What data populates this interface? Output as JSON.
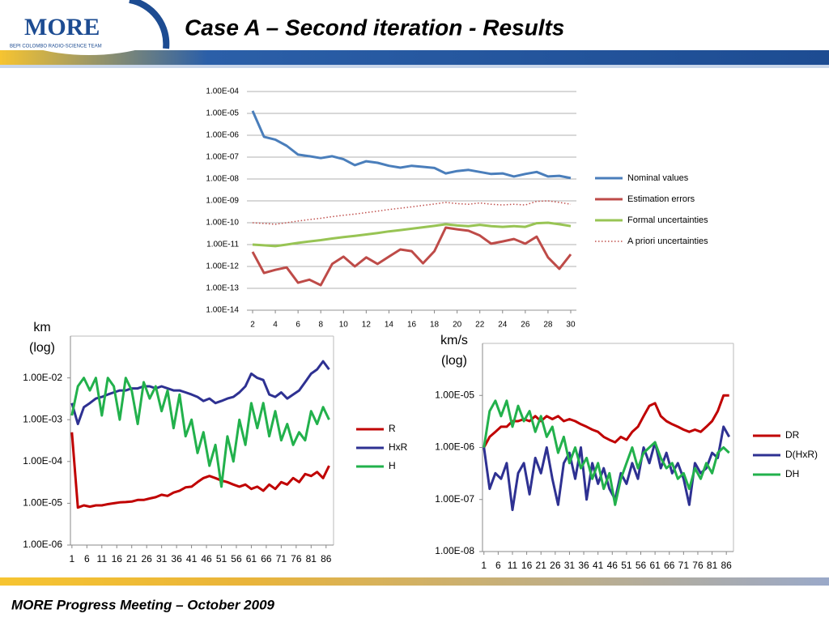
{
  "header": {
    "title": "Case A – Second iteration - Results",
    "logo": "MORE",
    "logo_subtitle": "BEPI COLOMBO RADIO-SCIENCE TEAM"
  },
  "footer": "MORE Progress Meeting – October 2009",
  "chart_data": [
    {
      "type": "line",
      "log_y": true,
      "grid": true,
      "legend": "right",
      "x": [
        2,
        3,
        4,
        5,
        6,
        7,
        8,
        9,
        10,
        11,
        12,
        13,
        14,
        15,
        16,
        17,
        18,
        19,
        20,
        21,
        22,
        23,
        24,
        25,
        26,
        27,
        28,
        29,
        30
      ],
      "xlim": [
        1.5,
        30.5
      ],
      "xticks": [
        2,
        4,
        6,
        8,
        10,
        12,
        14,
        16,
        18,
        20,
        22,
        24,
        26,
        28,
        30
      ],
      "ylim": [
        1e-14,
        0.0001
      ],
      "yticks": [
        {
          "value": 1e-14,
          "label": "1.00E-14"
        },
        {
          "value": 1e-13,
          "label": "1.00E-13"
        },
        {
          "value": 1e-12,
          "label": "1.00E-12"
        },
        {
          "value": 1e-11,
          "label": "1.00E-11"
        },
        {
          "value": 1e-10,
          "label": "1.00E-10"
        },
        {
          "value": 1e-09,
          "label": "1.00E-09"
        },
        {
          "value": 1e-08,
          "label": "1.00E-08"
        },
        {
          "value": 1e-07,
          "label": "1.00E-07"
        },
        {
          "value": 1e-06,
          "label": "1.00E-06"
        },
        {
          "value": 1e-05,
          "label": "1.00E-05"
        },
        {
          "value": 0.0001,
          "label": "1.00E-04"
        }
      ],
      "series": [
        {
          "name": "Nominal values",
          "color": "#4a7ebb",
          "values": [
            1.3e-05,
            8.5e-07,
            6.3e-07,
            3.3e-07,
            1.3e-07,
            1.1e-07,
            9e-08,
            1.1e-07,
            8e-08,
            4.3e-08,
            6.5e-08,
            5.5e-08,
            4e-08,
            3.3e-08,
            4e-08,
            3.6e-08,
            3.2e-08,
            1.8e-08,
            2.3e-08,
            2.6e-08,
            2.1e-08,
            1.7e-08,
            1.8e-08,
            1.3e-08,
            1.7e-08,
            2.1e-08,
            1.3e-08,
            1.4e-08,
            1.1e-08
          ]
        },
        {
          "name": "Estimation errors",
          "color": "#be4b48",
          "values": [
            4.7e-12,
            5e-13,
            7e-13,
            9e-13,
            1.8e-13,
            2.5e-13,
            1.4e-13,
            1.3e-12,
            2.8e-12,
            1e-12,
            2.6e-12,
            1.3e-12,
            2.8e-12,
            6e-12,
            5e-12,
            1.4e-12,
            5e-12,
            6e-11,
            5e-11,
            4.3e-11,
            2.6e-11,
            1.1e-11,
            1.4e-11,
            1.8e-11,
            1.1e-11,
            2.3e-11,
            2.6e-12,
            7.8e-13,
            3.6e-12
          ]
        },
        {
          "name": "Formal uncertainties",
          "color": "#98c454",
          "values": [
            1e-11,
            9.3e-12,
            8.5e-12,
            1e-11,
            1.2e-11,
            1.4e-11,
            1.6e-11,
            1.9e-11,
            2.2e-11,
            2.5e-11,
            2.9e-11,
            3.4e-11,
            4e-11,
            4.6e-11,
            5.3e-11,
            6.2e-11,
            7.2e-11,
            8.5e-11,
            7.5e-11,
            7e-11,
            8e-11,
            7e-11,
            6.5e-11,
            7e-11,
            6.5e-11,
            9.5e-11,
            1e-10,
            8.5e-11,
            7e-11
          ]
        },
        {
          "name": "A priori uncertainties",
          "color": "#c0504d",
          "style": "dotted",
          "values": [
            1e-10,
            9.3e-11,
            8.5e-11,
            1e-10,
            1.2e-10,
            1.4e-10,
            1.6e-10,
            1.9e-10,
            2.2e-10,
            2.5e-10,
            2.9e-10,
            3.4e-10,
            4e-10,
            4.6e-10,
            5.3e-10,
            6.2e-10,
            7.2e-10,
            8.5e-10,
            7.5e-10,
            7e-10,
            8e-10,
            7e-10,
            6.5e-10,
            7e-10,
            6.5e-10,
            9.5e-10,
            1e-09,
            8.5e-10,
            7e-10
          ]
        }
      ]
    },
    {
      "type": "line",
      "log_y": true,
      "grid": false,
      "legend": "right",
      "ylabel": [
        "km",
        "(log)"
      ],
      "x": [
        1,
        3,
        5,
        7,
        9,
        11,
        13,
        15,
        17,
        19,
        21,
        23,
        25,
        27,
        29,
        31,
        33,
        35,
        37,
        39,
        41,
        43,
        45,
        47,
        49,
        51,
        53,
        55,
        57,
        59,
        61,
        63,
        65,
        67,
        69,
        71,
        73,
        75,
        77,
        79,
        81,
        83,
        85,
        87
      ],
      "xlim": [
        0.5,
        88.5
      ],
      "xticks": [
        1,
        6,
        11,
        16,
        21,
        26,
        31,
        36,
        41,
        46,
        51,
        56,
        61,
        66,
        71,
        76,
        81,
        86
      ],
      "ylim": [
        1e-06,
        0.1
      ],
      "yticks": [
        {
          "value": 1e-06,
          "label": "1.00E-06"
        },
        {
          "value": 1e-05,
          "label": "1.00E-05"
        },
        {
          "value": 0.0001,
          "label": "1.00E-04"
        },
        {
          "value": 0.001,
          "label": "1.00E-03"
        },
        {
          "value": 0.01,
          "label": "1.00E-02"
        }
      ],
      "series": [
        {
          "name": "R",
          "color": "#c00000",
          "values": [
            0.0005,
            7.9e-06,
            8.9e-06,
            8.3e-06,
            8.9e-06,
            8.9e-06,
            9.5e-06,
            1e-05,
            1.05e-05,
            1.07e-05,
            1.1e-05,
            1.2e-05,
            1.2e-05,
            1.3e-05,
            1.4e-05,
            1.6e-05,
            1.5e-05,
            1.8e-05,
            2e-05,
            2.4e-05,
            2.5e-05,
            3.2e-05,
            4e-05,
            4.5e-05,
            4e-05,
            3.5e-05,
            3.2e-05,
            2.8e-05,
            2.5e-05,
            2.8e-05,
            2.2e-05,
            2.5e-05,
            2e-05,
            2.8e-05,
            2.2e-05,
            3.2e-05,
            2.8e-05,
            4e-05,
            3.2e-05,
            5e-05,
            4.5e-05,
            5.6e-05,
            4e-05,
            7.9e-05
          ]
        },
        {
          "name": "HxR",
          "color": "#2e3192",
          "values": [
            0.0025,
            0.00079,
            0.002,
            0.0025,
            0.0032,
            0.0035,
            0.004,
            0.0045,
            0.005,
            0.005,
            0.0056,
            0.0056,
            0.0063,
            0.0063,
            0.0056,
            0.0063,
            0.0056,
            0.005,
            0.005,
            0.0045,
            0.004,
            0.0035,
            0.0028,
            0.0032,
            0.0025,
            0.0028,
            0.0032,
            0.0035,
            0.0045,
            0.0063,
            0.0126,
            0.01,
            0.0089,
            0.004,
            0.0035,
            0.0045,
            0.0032,
            0.004,
            0.005,
            0.0079,
            0.0126,
            0.016,
            0.025,
            0.016
          ]
        },
        {
          "name": "H",
          "color": "#22b14c",
          "values": [
            0.00126,
            0.0063,
            0.01,
            0.005,
            0.01,
            0.00126,
            0.01,
            0.0063,
            0.001,
            0.01,
            0.005,
            0.00079,
            0.0079,
            0.0032,
            0.0063,
            0.0016,
            0.005,
            0.00063,
            0.004,
            0.0004,
            0.001,
            0.00016,
            0.0005,
            7.9e-05,
            0.00025,
            2.5e-05,
            0.0004,
            0.0001,
            0.001,
            0.00025,
            0.0025,
            0.00063,
            0.0025,
            0.0004,
            0.0016,
            0.00032,
            0.00079,
            0.00025,
            0.0005,
            0.00032,
            0.0016,
            0.00079,
            0.002,
            0.001
          ]
        }
      ]
    },
    {
      "type": "line",
      "log_y": true,
      "grid": false,
      "legend": "right",
      "ylabel": [
        "km/s",
        "(log)"
      ],
      "x": [
        1,
        3,
        5,
        7,
        9,
        11,
        13,
        15,
        17,
        19,
        21,
        23,
        25,
        27,
        29,
        31,
        33,
        35,
        37,
        39,
        41,
        43,
        45,
        47,
        49,
        51,
        53,
        55,
        57,
        59,
        61,
        63,
        65,
        67,
        69,
        71,
        73,
        75,
        77,
        79,
        81,
        83,
        85,
        87
      ],
      "xlim": [
        0.5,
        88.5
      ],
      "xticks": [
        1,
        6,
        11,
        16,
        21,
        26,
        31,
        36,
        41,
        46,
        51,
        56,
        61,
        66,
        71,
        76,
        81,
        86
      ],
      "ylim": [
        1e-08,
        0.0001
      ],
      "yticks": [
        {
          "value": 1e-08,
          "label": "1.00E-08"
        },
        {
          "value": 1e-07,
          "label": "1.00E-07"
        },
        {
          "value": 1e-06,
          "label": "1.00E-06"
        },
        {
          "value": 1e-05,
          "label": "1.00E-05"
        }
      ],
      "series": [
        {
          "name": "DR",
          "color": "#c00000",
          "values": [
            1e-06,
            1.6e-06,
            2e-06,
            2.5e-06,
            2.5e-06,
            3.2e-06,
            3.2e-06,
            3.5e-06,
            3.2e-06,
            4e-06,
            3.2e-06,
            4e-06,
            3.5e-06,
            4e-06,
            3.2e-06,
            3.5e-06,
            3.2e-06,
            2.8e-06,
            2.5e-06,
            2.2e-06,
            2e-06,
            1.6e-06,
            1.4e-06,
            1.26e-06,
            1.6e-06,
            1.4e-06,
            2e-06,
            2.5e-06,
            4e-06,
            6.3e-06,
            7.1e-06,
            4e-06,
            3.2e-06,
            2.8e-06,
            2.5e-06,
            2.2e-06,
            2e-06,
            2.2e-06,
            2e-06,
            2.5e-06,
            3.2e-06,
            5e-06,
            1e-05,
            1e-05
          ]
        },
        {
          "name": "D(HxR)",
          "color": "#2e3192",
          "values": [
            1e-06,
            1.6e-07,
            3.2e-07,
            2.5e-07,
            5e-07,
            6.3e-08,
            3.2e-07,
            5e-07,
            1.26e-07,
            6.3e-07,
            3.2e-07,
            1e-06,
            2.5e-07,
            7.9e-08,
            5e-07,
            7.9e-07,
            2.5e-07,
            1e-06,
            1e-07,
            5e-07,
            2e-07,
            4e-07,
            1.6e-07,
            1e-07,
            3.2e-07,
            2e-07,
            5e-07,
            2.5e-07,
            1e-06,
            5e-07,
            1.26e-06,
            4e-07,
            7.9e-07,
            3.2e-07,
            5e-07,
            2.5e-07,
            7.9e-08,
            5e-07,
            3.2e-07,
            4e-07,
            7.9e-07,
            6.3e-07,
            2.5e-06,
            1.6e-06
          ]
        },
        {
          "name": "DH",
          "color": "#22b14c",
          "values": [
            1e-06,
            5e-06,
            7.9e-06,
            4e-06,
            7.9e-06,
            2.5e-06,
            6.3e-06,
            3.2e-06,
            5e-06,
            2e-06,
            4e-06,
            1.6e-06,
            2.5e-06,
            7.9e-07,
            1.6e-06,
            5e-07,
            1e-06,
            4e-07,
            6.3e-07,
            2.5e-07,
            5e-07,
            1.6e-07,
            3.2e-07,
            7.9e-08,
            2.5e-07,
            5e-07,
            1e-06,
            4e-07,
            7.9e-07,
            1e-06,
            1.26e-06,
            6.3e-07,
            4e-07,
            5e-07,
            2.5e-07,
            3.2e-07,
            1.6e-07,
            4e-07,
            2.5e-07,
            5e-07,
            3.2e-07,
            7.9e-07,
            1e-06,
            7.9e-07
          ]
        }
      ]
    }
  ]
}
